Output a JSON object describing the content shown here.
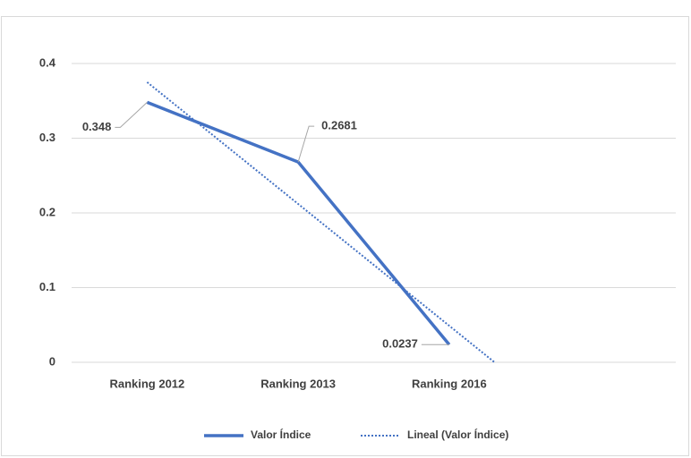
{
  "chart_data": {
    "type": "line",
    "categories": [
      "Ranking 2012",
      "Ranking 2013",
      "Ranking 2016",
      null
    ],
    "series": [
      {
        "name": "Valor Índice",
        "color": "#4472c4",
        "values": [
          0.348,
          0.2681,
          0.0237,
          null
        ]
      }
    ],
    "trendline": {
      "name": "Lineal (Valor Índice)",
      "color": "#4472c4",
      "x": [
        0,
        2.3
      ],
      "values": [
        0.375,
        0
      ]
    },
    "ylim": [
      0,
      0.4
    ],
    "yticks": [
      0,
      0.1,
      0.2,
      0.3,
      0.4
    ],
    "grid": true,
    "legend": "bottom"
  }
}
